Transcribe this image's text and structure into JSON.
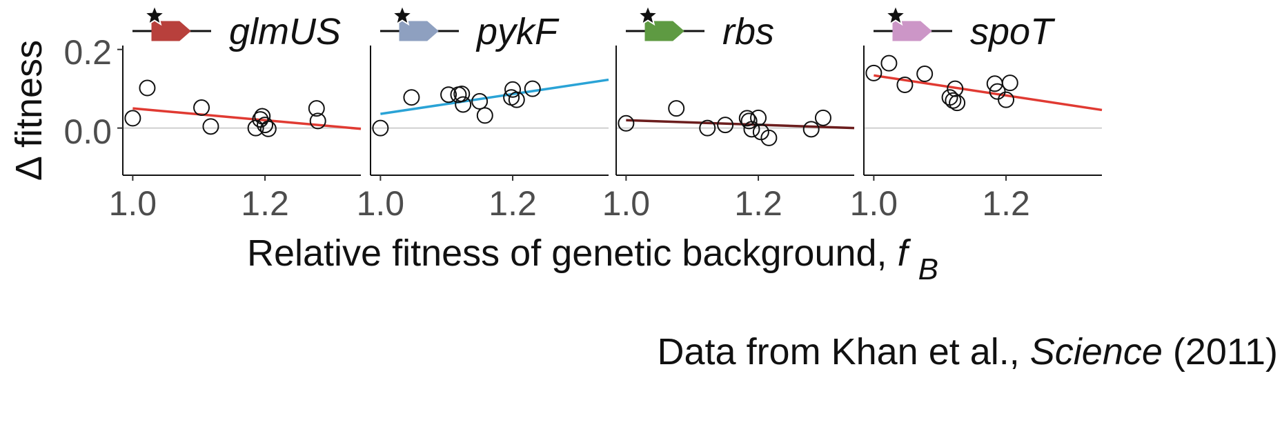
{
  "chart_data": {
    "type": "scatter",
    "ylabel": "Δ fitness",
    "xlabel_main": "Relative fitness of genetic background, ",
    "xlabel_symbol": "f",
    "xlabel_subscript": "B",
    "xlim": [
      0.985,
      1.345
    ],
    "ylim": [
      -0.12,
      0.21
    ],
    "x_ticks": [
      1.0,
      1.2
    ],
    "x_tick_labels": [
      "1.0",
      "1.2"
    ],
    "y_ticks": [
      0.2,
      0.0
    ],
    "y_tick_labels": [
      "0.2",
      "0.0"
    ],
    "reference_line_y": 0.0,
    "credit": {
      "prefix": "Data from Khan et al., ",
      "journal": "Science",
      "suffix": " (2011)"
    },
    "panels": [
      {
        "gene": "glmUS",
        "gene_color": "#b8403c",
        "fit_color": "#e03a32",
        "fit": {
          "x": [
            1.0,
            1.345
          ],
          "y": [
            0.05,
            -0.002
          ]
        },
        "points": [
          [
            1.0,
            0.025
          ],
          [
            1.022,
            0.102
          ],
          [
            1.104,
            0.052
          ],
          [
            1.118,
            0.004
          ],
          [
            1.186,
            0.0
          ],
          [
            1.193,
            0.022
          ],
          [
            1.196,
            0.03
          ],
          [
            1.2,
            0.008
          ],
          [
            1.205,
            -0.002
          ],
          [
            1.278,
            0.05
          ],
          [
            1.28,
            0.018
          ]
        ]
      },
      {
        "gene": "pykF",
        "gene_color": "#8ea0c0",
        "fit_color": "#2aa3d6",
        "fit": {
          "x": [
            1.0,
            1.345
          ],
          "y": [
            0.036,
            0.123
          ]
        },
        "points": [
          [
            1.0,
            0.0
          ],
          [
            1.047,
            0.078
          ],
          [
            1.103,
            0.085
          ],
          [
            1.118,
            0.085
          ],
          [
            1.123,
            0.087
          ],
          [
            1.125,
            0.06
          ],
          [
            1.15,
            0.068
          ],
          [
            1.158,
            0.032
          ],
          [
            1.198,
            0.078
          ],
          [
            1.2,
            0.098
          ],
          [
            1.206,
            0.072
          ],
          [
            1.23,
            0.1
          ]
        ]
      },
      {
        "gene": "rbs",
        "gene_color": "#5e9a42",
        "fit_color": "#6b1d1d",
        "fit": {
          "x": [
            1.0,
            1.345
          ],
          "y": [
            0.02,
            0.0
          ]
        },
        "points": [
          [
            1.0,
            0.012
          ],
          [
            1.076,
            0.05
          ],
          [
            1.123,
            0.0
          ],
          [
            1.15,
            0.008
          ],
          [
            1.183,
            0.025
          ],
          [
            1.186,
            0.018
          ],
          [
            1.19,
            -0.003
          ],
          [
            1.2,
            0.026
          ],
          [
            1.204,
            -0.01
          ],
          [
            1.216,
            -0.025
          ],
          [
            1.28,
            -0.003
          ],
          [
            1.298,
            0.026
          ]
        ]
      },
      {
        "gene": "spoT",
        "gene_color": "#cc96c7",
        "fit_color": "#e03a32",
        "fit": {
          "x": [
            1.0,
            1.345
          ],
          "y": [
            0.134,
            0.046
          ]
        },
        "points": [
          [
            1.0,
            0.14
          ],
          [
            1.023,
            0.165
          ],
          [
            1.047,
            0.11
          ],
          [
            1.077,
            0.138
          ],
          [
            1.115,
            0.078
          ],
          [
            1.12,
            0.07
          ],
          [
            1.123,
            0.1
          ],
          [
            1.126,
            0.064
          ],
          [
            1.183,
            0.113
          ],
          [
            1.187,
            0.093
          ],
          [
            1.2,
            0.072
          ],
          [
            1.206,
            0.115
          ]
        ]
      }
    ]
  }
}
